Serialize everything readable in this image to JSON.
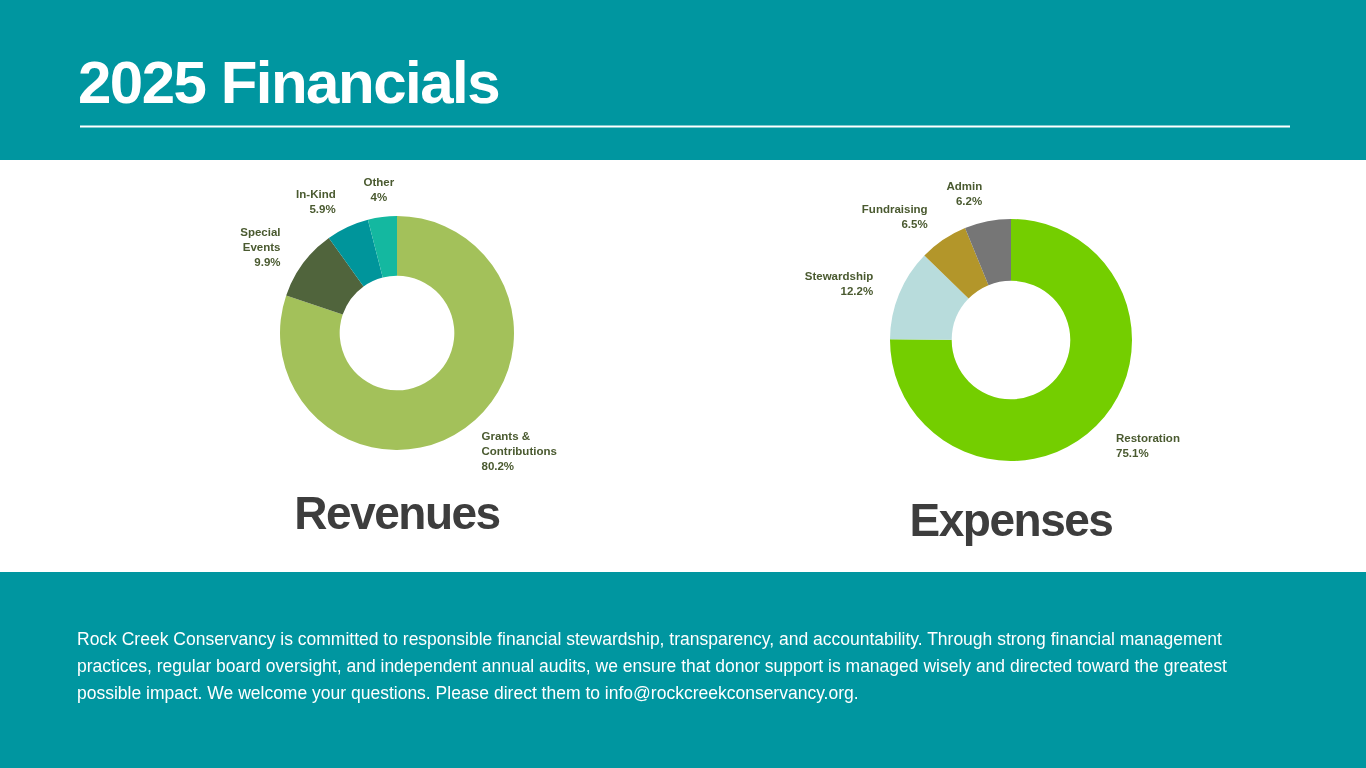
{
  "chart_data": [
    {
      "type": "other",
      "title": "2025 Financials",
      "annotations": [
        "Rock Creek Conservancy is committed to responsible financial stewardship, transparency, and accountability. Through strong financial management practices, regular board oversight, and independent annual audits, we ensure that donor support is managed wisely and directed toward the greatest possible impact. We welcome your questions. Please direct them to info@rockcreekconservancy.org."
      ]
    },
    {
      "type": "donut",
      "title": "Revenues",
      "categories": [
        "Grants & Contributions",
        "Special Events",
        "In-Kind",
        "Other"
      ],
      "values": [
        80.2,
        9.9,
        5.9,
        4
      ],
      "value_labels": [
        "80.2%",
        "9.9%",
        "5.9%",
        "4%"
      ],
      "colors": [
        "#a3c15a",
        "#50643c",
        "#00959b",
        "#14b8a0"
      ]
    },
    {
      "type": "donut",
      "title": "Expenses",
      "categories": [
        "Restoration",
        "Stewardship",
        "Fundraising",
        "Admin"
      ],
      "values": [
        75.1,
        12.2,
        6.5,
        6.2
      ],
      "value_labels": [
        "75.1%",
        "12.2%",
        "6.5%",
        "6.2%"
      ],
      "colors": [
        "#74ce00",
        "#b8dcdc",
        "#b3962a",
        "#767676"
      ]
    }
  ]
}
